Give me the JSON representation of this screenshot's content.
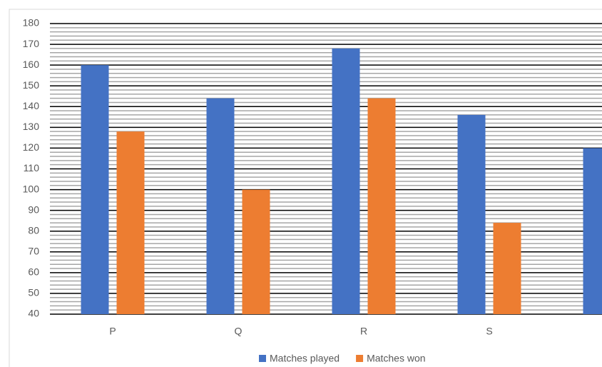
{
  "chart_data": {
    "type": "bar",
    "categories": [
      "P",
      "Q",
      "R",
      "S",
      null
    ],
    "series": [
      {
        "name": "Matches played",
        "color": "#4472c4",
        "values": [
          160,
          144,
          168,
          136,
          120
        ]
      },
      {
        "name": "Matches won",
        "color": "#ed7d31",
        "values": [
          128,
          100,
          144,
          84,
          null
        ]
      }
    ],
    "ylim": [
      40,
      180
    ],
    "yticks": [
      40,
      50,
      60,
      70,
      80,
      90,
      100,
      110,
      120,
      130,
      140,
      150,
      160,
      170,
      180
    ],
    "grid": true,
    "legend": "bottom"
  }
}
